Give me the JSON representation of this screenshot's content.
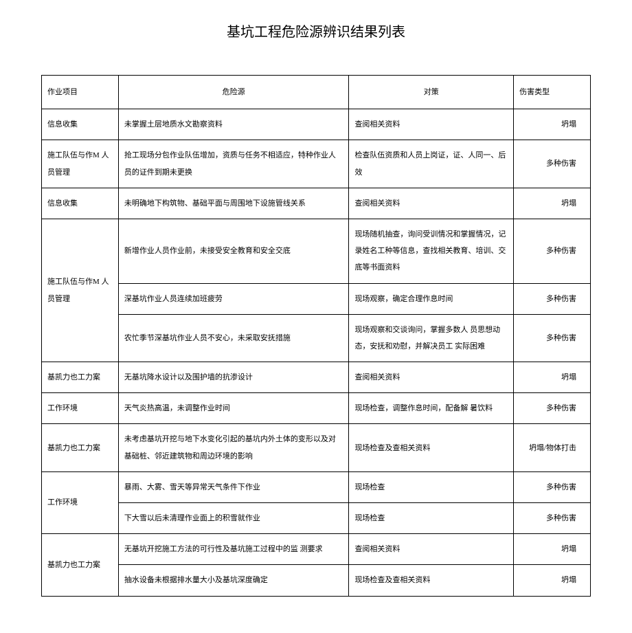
{
  "title": "基坑工程危险源辨识结果列表",
  "columns": {
    "col1": "作业项目",
    "col2": "危险源",
    "col3": "对策",
    "col4": "伤害类型"
  },
  "rows": [
    {
      "project": "信息收集",
      "hazard": "未掌握土层地质水文勘察资料",
      "measure": "查阅相关资料",
      "harm": "坍塌"
    },
    {
      "project": "施工队伍与作M 人员管理",
      "hazard": "抢工现场分包作业队伍增加，资质与任务不相适应，特种作业人员的证件到期未更换",
      "measure": "检查队伍资质和人员上岗证，证、人同一、后效",
      "harm": "多种伤害"
    },
    {
      "project": "信息收集",
      "hazard": "未明确地下构筑物、基础平面与周围地下设施管线关系",
      "measure": "查阅相关资料",
      "harm": "坍塌"
    },
    {
      "project": "施工队伍与作M 人员管理",
      "sub": [
        {
          "hazard": "新增作业人员作业前，未接受安全教育和安全交底",
          "measure": "现场随机抽查，询问受训情况和掌握情况，记录姓名工种等信息，查找相关教育、培训、交底等书面资料",
          "harm": "多种伤害"
        },
        {
          "hazard": "深基坑作业人员连续加班疲劳",
          "measure": "现场观察，确定合理作息时间",
          "harm": "多种伤害"
        },
        {
          "hazard": "农忙季节深基坑作业人员不安心，未采取安抚措施",
          "measure": "现场观察和交谈询问，掌握多数人 员思想动态，安抚和劝慰，并解决员工 实际困难",
          "harm": "多种伤害"
        }
      ]
    },
    {
      "project": "基凯力也工力案",
      "hazard": "无基坑降水设计以及围护墙的抗渗设计",
      "measure": "查阅相关资料",
      "harm": "坍塌"
    },
    {
      "project": "工作环境",
      "hazard": "天气炎热高温，未调整作业时间",
      "measure": "现场检查，调整作息时间，配备解 暑饮料",
      "harm": "多种伤害"
    },
    {
      "project": "基凯力也工力案",
      "hazard": "未考虑基坑开挖与地下水变化引起的基坑内外土体的变形以及对基础桩、邻近建筑物和周边环境的影响",
      "measure": "现场检查及查相关资料",
      "harm": "坍塌/物体打击"
    },
    {
      "project": "工作环境",
      "sub": [
        {
          "hazard": "暴雨、大雾、雪天等异常天气条件下作业",
          "measure": "现场检查",
          "harm": "多种伤害"
        },
        {
          "hazard": "下大雪以后未清理作业面上的积雪就作业",
          "measure": "现场检查",
          "harm": "多种伤害"
        }
      ]
    },
    {
      "project": "基凯力也工力案",
      "sub": [
        {
          "hazard": "无基坑开挖施工方法的可行性及基坑施工过程中的监 测要求",
          "measure": "查阅相关资料",
          "harm": "坍塌"
        },
        {
          "hazard": "抽水设备未根据排水量大小及基坑深度确定",
          "measure": "现场检查及查相关资料",
          "harm": "坍塌"
        }
      ]
    }
  ]
}
